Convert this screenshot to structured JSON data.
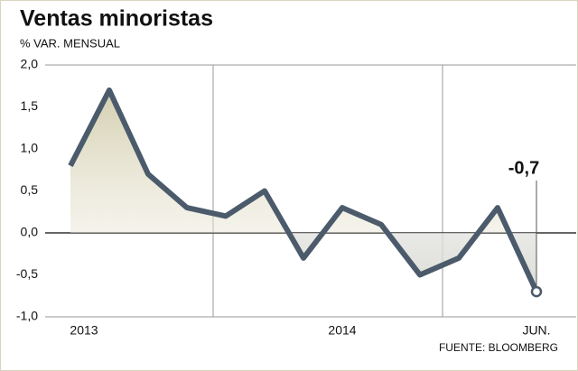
{
  "chart_data": {
    "type": "line",
    "title": "Ventas minoristas",
    "subtitle": "% VAR. MENSUAL",
    "source": "FUENTE: BLOOMBERG",
    "categories": [
      "2013",
      null,
      null,
      null,
      null,
      null,
      null,
      "2014",
      null,
      null,
      null,
      null,
      "JUN."
    ],
    "series": [
      {
        "name": "Ventas minoristas",
        "color": "#4b5b6b",
        "values": [
          0.8,
          1.7,
          0.7,
          0.3,
          0.2,
          0.5,
          -0.3,
          0.3,
          0.1,
          -0.5,
          -0.3,
          0.3,
          -0.7
        ],
        "value_labels": [
          null,
          null,
          null,
          null,
          null,
          null,
          null,
          null,
          null,
          null,
          null,
          null,
          "-0,7"
        ]
      }
    ],
    "ylim": [
      -1,
      2
    ],
    "yticks": [
      {
        "value": -1,
        "label": "-1,0"
      },
      {
        "value": -0.5,
        "label": "-0,5"
      },
      {
        "value": 0,
        "label": "0,0"
      },
      {
        "value": 0.5,
        "label": "0,5"
      },
      {
        "value": 1,
        "label": "1,0"
      },
      {
        "value": 1.5,
        "label": "1,5"
      },
      {
        "value": 2,
        "label": "2,0"
      }
    ],
    "grid": false
  }
}
